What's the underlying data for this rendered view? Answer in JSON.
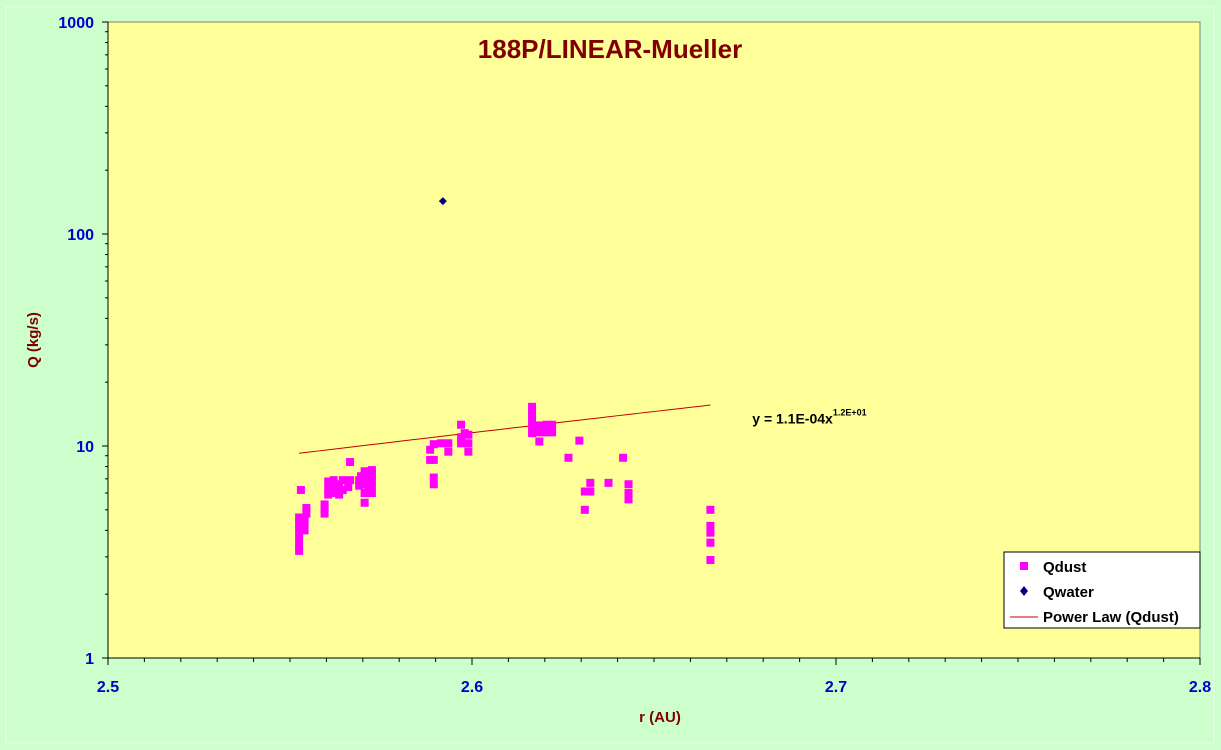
{
  "chart_data": {
    "type": "scatter",
    "title": "188P/LINEAR-Mueller",
    "xlabel": "r (AU)",
    "ylabel": "Q (kg/s)",
    "xlim": [
      2.5,
      2.8
    ],
    "ylim": [
      1,
      1000
    ],
    "y_scale": "log",
    "grid": false,
    "x_ticks": [
      "2.5",
      "2.6",
      "2.7",
      "2.8"
    ],
    "y_ticks": [
      "1",
      "10",
      "100",
      "1000"
    ],
    "legend_position": "bottom-right",
    "series": [
      {
        "name": "Qdust",
        "marker": "square",
        "color": "#ff00ff",
        "points": [
          [
            2.5525,
            3.2
          ],
          [
            2.5525,
            3.4
          ],
          [
            2.5525,
            3.7
          ],
          [
            2.5525,
            4.0
          ],
          [
            2.5525,
            4.3
          ],
          [
            2.5525,
            4.6
          ],
          [
            2.553,
            6.2
          ],
          [
            2.554,
            4.0
          ],
          [
            2.554,
            4.3
          ],
          [
            2.554,
            4.6
          ],
          [
            2.5545,
            4.8
          ],
          [
            2.5545,
            5.1
          ],
          [
            2.5595,
            4.8
          ],
          [
            2.5595,
            5.1
          ],
          [
            2.5595,
            5.3
          ],
          [
            2.5605,
            5.9
          ],
          [
            2.5605,
            6.3
          ],
          [
            2.5605,
            6.8
          ],
          [
            2.562,
            6.0
          ],
          [
            2.562,
            6.4
          ],
          [
            2.562,
            6.9
          ],
          [
            2.5635,
            5.9
          ],
          [
            2.5635,
            6.3
          ],
          [
            2.5635,
            6.6
          ],
          [
            2.5645,
            6.2
          ],
          [
            2.5645,
            6.9
          ],
          [
            2.566,
            6.4
          ],
          [
            2.5665,
            6.9
          ],
          [
            2.5665,
            8.4
          ],
          [
            2.569,
            6.5
          ],
          [
            2.569,
            6.9
          ],
          [
            2.5695,
            7.2
          ],
          [
            2.5705,
            5.4
          ],
          [
            2.5705,
            6.0
          ],
          [
            2.5705,
            6.6
          ],
          [
            2.5705,
            7.1
          ],
          [
            2.5705,
            7.6
          ],
          [
            2.5715,
            6.5
          ],
          [
            2.5715,
            7.0
          ],
          [
            2.5725,
            6.0
          ],
          [
            2.5725,
            6.4
          ],
          [
            2.5725,
            6.8
          ],
          [
            2.5725,
            7.3
          ],
          [
            2.5725,
            7.7
          ],
          [
            2.5885,
            8.6
          ],
          [
            2.5885,
            9.6
          ],
          [
            2.5895,
            6.6
          ],
          [
            2.5895,
            7.1
          ],
          [
            2.5895,
            8.6
          ],
          [
            2.5895,
            10.2
          ],
          [
            2.5915,
            10.3
          ],
          [
            2.5935,
            9.4
          ],
          [
            2.5935,
            10.3
          ],
          [
            2.597,
            10.3
          ],
          [
            2.597,
            11.0
          ],
          [
            2.597,
            12.6
          ],
          [
            2.598,
            11.5
          ],
          [
            2.599,
            9.4
          ],
          [
            2.599,
            10.3
          ],
          [
            2.599,
            11.3
          ],
          [
            2.6165,
            11.5
          ],
          [
            2.6165,
            12.4
          ],
          [
            2.6165,
            13.4
          ],
          [
            2.6165,
            14.3
          ],
          [
            2.6165,
            15.3
          ],
          [
            2.6185,
            10.5
          ],
          [
            2.6185,
            11.6
          ],
          [
            2.6185,
            12.5
          ],
          [
            2.6205,
            11.6
          ],
          [
            2.6205,
            12.6
          ],
          [
            2.622,
            11.6
          ],
          [
            2.622,
            12.6
          ],
          [
            2.6265,
            8.8
          ],
          [
            2.6295,
            10.6
          ],
          [
            2.631,
            5.0
          ],
          [
            2.631,
            6.1
          ],
          [
            2.6325,
            6.1
          ],
          [
            2.6325,
            6.7
          ],
          [
            2.6375,
            6.7
          ],
          [
            2.6415,
            8.8
          ],
          [
            2.643,
            5.6
          ],
          [
            2.643,
            6.0
          ],
          [
            2.643,
            6.6
          ],
          [
            2.6655,
            2.9
          ],
          [
            2.6655,
            3.5
          ],
          [
            2.6655,
            3.9
          ],
          [
            2.6655,
            4.2
          ],
          [
            2.6655,
            5.0
          ]
        ]
      },
      {
        "name": "Qwater",
        "marker": "diamond",
        "color": "#000080",
        "points": [
          [
            2.592,
            143
          ]
        ]
      },
      {
        "name": "Power Law (Qdust)",
        "type": "line",
        "color": "#c00000",
        "x_range": [
          2.5525,
          2.6655
        ],
        "coefficient": 0.00011,
        "exponent": 12.1
      }
    ],
    "annotation": {
      "text": "y = 1.1E-04x",
      "superscript": "1.2E+01",
      "x": 2.677,
      "y": 12.8
    }
  }
}
